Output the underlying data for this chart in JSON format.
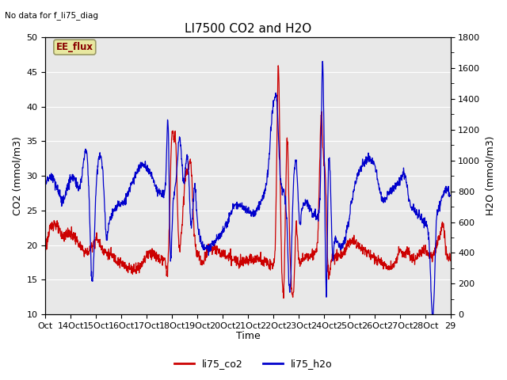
{
  "title": "LI7500 CO2 and H2O",
  "top_left_text": "No data for f_li75_diag",
  "ylabel_left": "CO2 (mmol/m3)",
  "ylabel_right": "H2O (mmol/m3)",
  "xlabel": "Time",
  "ylim_left": [
    10,
    50
  ],
  "ylim_right": [
    0,
    1800
  ],
  "xtick_labels": [
    "Oct",
    "14Oct",
    "15Oct",
    "16Oct",
    "17Oct",
    "18Oct",
    "19Oct",
    "20Oct",
    "21Oct",
    "22Oct",
    "23Oct",
    "24Oct",
    "25Oct",
    "26Oct",
    "27Oct",
    "28Oct",
    "29"
  ],
  "color_co2": "#cc0000",
  "color_h2o": "#0000cc",
  "legend_label_co2": "li75_co2",
  "legend_label_h2o": "li75_h2o",
  "bg_color": "#e8e8e8",
  "ee_flux_label": "EE_flux",
  "ee_flux_bg": "#e8e8a0",
  "ee_flux_border": "#999966",
  "title_fontsize": 11,
  "label_fontsize": 9,
  "tick_fontsize": 8
}
